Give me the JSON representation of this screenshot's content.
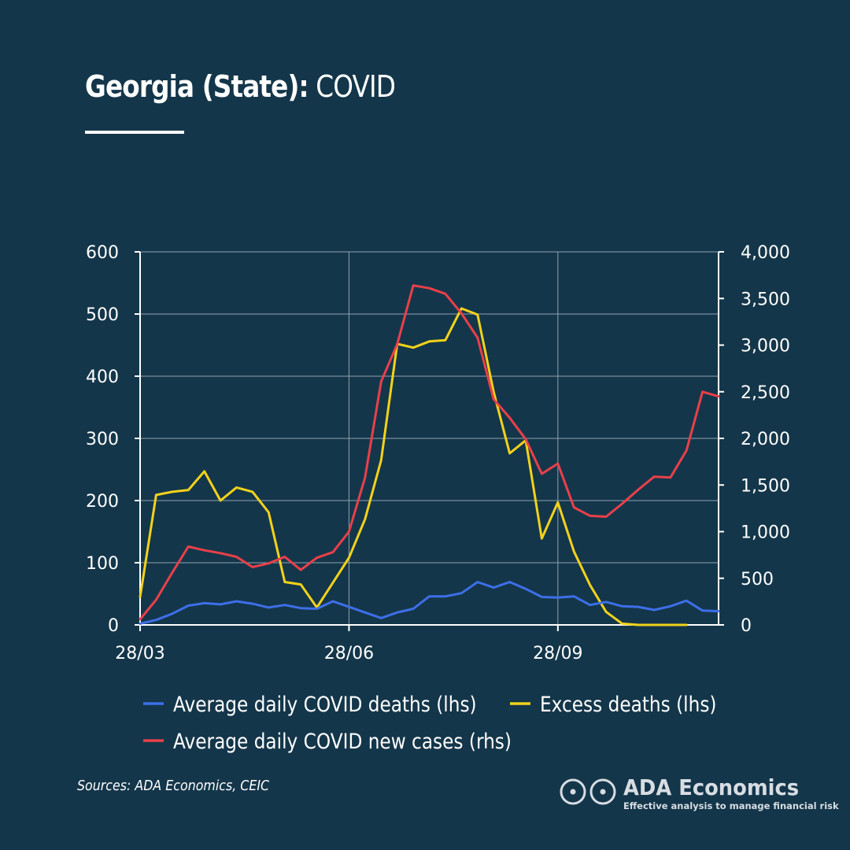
{
  "header": {
    "title_bold": "Georgia (State):",
    "title_light": " COVID"
  },
  "footer": {
    "source": "Sources: ADA Economics, CEIC",
    "brand_name": "ADA Economics",
    "brand_tagline": "Effective analysis to manage financial risk"
  },
  "chart_data": {
    "type": "line",
    "x_tick_labels": [
      "28/03",
      "28/06",
      "28/09"
    ],
    "x_tick_index": [
      0,
      13,
      26
    ],
    "y_left": {
      "range": [
        0,
        600
      ],
      "ticks": [
        0,
        100,
        200,
        300,
        400,
        500,
        600
      ],
      "tick_labels": [
        "0",
        "100",
        "200",
        "300",
        "400",
        "500",
        "600"
      ]
    },
    "y_right": {
      "range": [
        0,
        4000
      ],
      "ticks": [
        0,
        500,
        1000,
        1500,
        2000,
        2500,
        3000,
        3500,
        4000
      ],
      "tick_labels": [
        "0",
        "500",
        "1,000",
        "1,500",
        "2,000",
        "2,500",
        "3,000",
        "3,500",
        "4,000"
      ]
    },
    "grid": true,
    "legend_position": "bottom",
    "series": [
      {
        "name": "Average daily COVID deaths (lhs)",
        "axis": "left",
        "color": "#3d6fe8",
        "values": [
          2,
          8,
          18,
          31,
          35,
          33,
          38,
          34,
          28,
          32,
          27,
          26,
          38,
          29,
          20,
          11,
          20,
          26,
          46,
          46,
          51,
          69,
          60,
          69,
          58,
          45,
          44,
          46,
          32,
          37,
          30,
          29,
          24,
          30,
          39,
          23,
          22
        ]
      },
      {
        "name": "Excess deaths (lhs)",
        "axis": "left",
        "color": "#f2d21b",
        "values": [
          45,
          209,
          214,
          217,
          247,
          200,
          221,
          214,
          181,
          69,
          65,
          28,
          68,
          108,
          170,
          265,
          452,
          446,
          456,
          458,
          509,
          499,
          375,
          276,
          297,
          139,
          197,
          118,
          64,
          21,
          2,
          0,
          0,
          0,
          0,
          null,
          null
        ]
      },
      {
        "name": "Average daily COVID new cases (rhs)",
        "axis": "right",
        "color": "#e8404a",
        "values": [
          60,
          270,
          560,
          840,
          800,
          770,
          730,
          620,
          660,
          730,
          590,
          720,
          780,
          1000,
          1580,
          2610,
          3010,
          3640,
          3610,
          3550,
          3340,
          3080,
          2420,
          2220,
          1990,
          1620,
          1730,
          1260,
          1170,
          1160,
          1300,
          1450,
          1590,
          1580,
          1870,
          2500,
          2450
        ]
      }
    ]
  }
}
